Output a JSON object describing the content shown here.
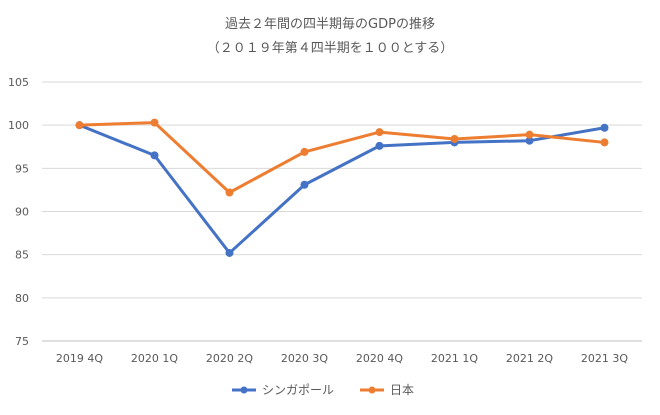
{
  "chart_data": {
    "type": "line",
    "title": "過去２年間の四半期毎のGDPの推移",
    "subtitle": "（２０１９年第４四半期を１００とする）",
    "categories": [
      "2019 4Q",
      "2020 1Q",
      "2020 2Q",
      "2020 3Q",
      "2020 4Q",
      "2021 1Q",
      "2021 2Q",
      "2021 3Q"
    ],
    "series": [
      {
        "name": "シンガポール",
        "color": "#4472C4",
        "values": [
          100.0,
          96.5,
          85.2,
          93.1,
          97.6,
          98.0,
          98.2,
          99.7
        ]
      },
      {
        "name": "日本",
        "color": "#ED7D31",
        "values": [
          100.0,
          100.3,
          92.2,
          96.9,
          99.2,
          98.4,
          98.9,
          98.0
        ]
      }
    ],
    "ylim": [
      75,
      105
    ],
    "yticks": [
      75,
      80,
      85,
      90,
      95,
      100,
      105
    ],
    "grid": true,
    "legend_position": "bottom"
  }
}
